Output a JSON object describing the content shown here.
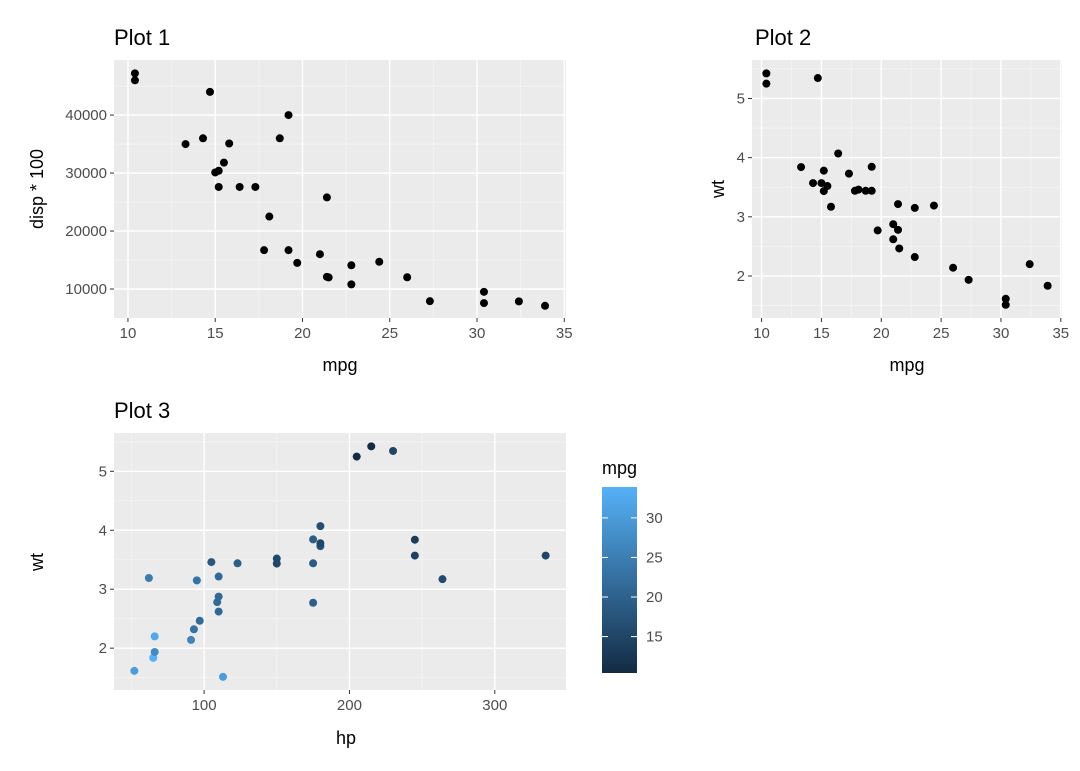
{
  "chart_data": [
    {
      "id": "p1",
      "type": "scatter",
      "title": "Plot 1",
      "xlabel": "mpg",
      "ylabel": "disp * 100",
      "xlim": [
        9.2,
        35.1
      ],
      "ylim": [
        5000,
        49500
      ],
      "xticks": [
        10,
        15,
        20,
        25,
        30,
        35
      ],
      "yticks": [
        10000,
        20000,
        30000,
        40000
      ],
      "xminor": [
        12.5,
        17.5,
        22.5,
        27.5,
        32.5
      ],
      "yminor": [
        5000,
        15000,
        25000,
        35000,
        45000
      ],
      "grid": true,
      "point_color": "#000000",
      "points": [
        [
          10.4,
          47200
        ],
        [
          10.4,
          46000
        ],
        [
          13.3,
          35000
        ],
        [
          14.3,
          36000
        ],
        [
          14.7,
          44000
        ],
        [
          15.0,
          30100
        ],
        [
          15.2,
          30400
        ],
        [
          15.2,
          27600
        ],
        [
          15.5,
          31800
        ],
        [
          15.8,
          35100
        ],
        [
          16.4,
          27600
        ],
        [
          17.3,
          27600
        ],
        [
          17.8,
          16700
        ],
        [
          18.1,
          22500
        ],
        [
          18.7,
          36000
        ],
        [
          19.2,
          40000
        ],
        [
          19.2,
          16700
        ],
        [
          19.7,
          14500
        ],
        [
          21.0,
          16000
        ],
        [
          21.4,
          25800
        ],
        [
          21.4,
          12100
        ],
        [
          21.5,
          12000
        ],
        [
          22.8,
          14100
        ],
        [
          22.8,
          10800
        ],
        [
          24.4,
          14700
        ],
        [
          26.0,
          12030
        ],
        [
          27.3,
          7900
        ],
        [
          30.4,
          9510
        ],
        [
          30.4,
          7570
        ],
        [
          32.4,
          7870
        ],
        [
          33.9,
          7110
        ]
      ]
    },
    {
      "id": "p2",
      "type": "scatter",
      "title": "Plot 2",
      "xlabel": "mpg",
      "ylabel": "wt",
      "xlim": [
        9.2,
        35.1
      ],
      "ylim": [
        1.29,
        5.65
      ],
      "xticks": [
        10,
        15,
        20,
        25,
        30,
        35
      ],
      "yticks": [
        2,
        3,
        4,
        5
      ],
      "xminor": [
        12.5,
        17.5,
        22.5,
        27.5,
        32.5
      ],
      "yminor": [
        1.5,
        2.5,
        3.5,
        4.5,
        5.5
      ],
      "grid": true,
      "point_color": "#000000",
      "points": [
        [
          10.4,
          5.25
        ],
        [
          10.4,
          5.424
        ],
        [
          13.3,
          3.84
        ],
        [
          14.3,
          3.57
        ],
        [
          14.7,
          5.345
        ],
        [
          15.0,
          3.57
        ],
        [
          15.2,
          3.435
        ],
        [
          15.2,
          3.78
        ],
        [
          15.5,
          3.52
        ],
        [
          15.8,
          3.17
        ],
        [
          16.4,
          4.07
        ],
        [
          17.3,
          3.73
        ],
        [
          17.8,
          3.44
        ],
        [
          18.1,
          3.46
        ],
        [
          18.7,
          3.44
        ],
        [
          19.2,
          3.44
        ],
        [
          19.2,
          3.845
        ],
        [
          19.7,
          2.77
        ],
        [
          21.0,
          2.62
        ],
        [
          21.0,
          2.875
        ],
        [
          21.4,
          3.215
        ],
        [
          21.4,
          2.78
        ],
        [
          21.5,
          2.465
        ],
        [
          22.8,
          3.15
        ],
        [
          22.8,
          2.32
        ],
        [
          24.4,
          3.19
        ],
        [
          26.0,
          2.14
        ],
        [
          27.3,
          1.935
        ],
        [
          30.4,
          1.615
        ],
        [
          30.4,
          1.513
        ],
        [
          32.4,
          2.2
        ],
        [
          33.9,
          1.835
        ]
      ]
    },
    {
      "id": "p3",
      "type": "scatter",
      "title": "Plot 3",
      "xlabel": "hp",
      "ylabel": "wt",
      "xlim": [
        38,
        349
      ],
      "ylim": [
        1.29,
        5.65
      ],
      "xticks": [
        100,
        200,
        300
      ],
      "yticks": [
        2,
        3,
        4,
        5
      ],
      "xminor": [
        50,
        150,
        250
      ],
      "yminor": [
        1.5,
        2.5,
        3.5,
        4.5,
        5.5
      ],
      "grid": true,
      "color_by": "mpg",
      "points": [
        [
          52,
          1.615,
          30.4
        ],
        [
          62,
          3.19,
          24.4
        ],
        [
          65,
          1.835,
          33.9
        ],
        [
          66,
          2.2,
          32.4
        ],
        [
          66,
          1.935,
          27.3
        ],
        [
          91,
          2.14,
          26.0
        ],
        [
          93,
          2.32,
          22.8
        ],
        [
          95,
          3.15,
          22.8
        ],
        [
          97,
          2.465,
          21.5
        ],
        [
          105,
          3.46,
          18.1
        ],
        [
          109,
          2.78,
          21.4
        ],
        [
          110,
          2.62,
          21.0
        ],
        [
          110,
          2.875,
          21.0
        ],
        [
          110,
          3.215,
          21.4
        ],
        [
          113,
          1.513,
          30.4
        ],
        [
          123,
          3.44,
          19.2
        ],
        [
          150,
          3.52,
          15.5
        ],
        [
          150,
          3.435,
          15.2
        ],
        [
          175,
          3.44,
          18.7
        ],
        [
          175,
          3.845,
          19.2
        ],
        [
          175,
          2.77,
          19.7
        ],
        [
          180,
          4.07,
          16.4
        ],
        [
          180,
          3.73,
          17.3
        ],
        [
          180,
          3.78,
          15.2
        ],
        [
          205,
          5.25,
          10.4
        ],
        [
          215,
          5.424,
          10.4
        ],
        [
          230,
          5.345,
          14.7
        ],
        [
          245,
          3.57,
          14.3
        ],
        [
          245,
          3.84,
          13.3
        ],
        [
          264,
          3.17,
          15.8
        ],
        [
          335,
          3.57,
          15.0
        ]
      ]
    }
  ],
  "legend": {
    "title": "mpg",
    "min": 10.4,
    "max": 33.9,
    "ticks": [
      15,
      20,
      25,
      30
    ],
    "low_color": "#132B43",
    "high_color": "#56B1F7",
    "placement": "right of Plot 3"
  },
  "colors": {
    "panel_background": "#EBEBEB",
    "grid_major": "#FFFFFF",
    "grid_minor": "#F4F4F4",
    "tick_text": "#4D4D4D"
  }
}
